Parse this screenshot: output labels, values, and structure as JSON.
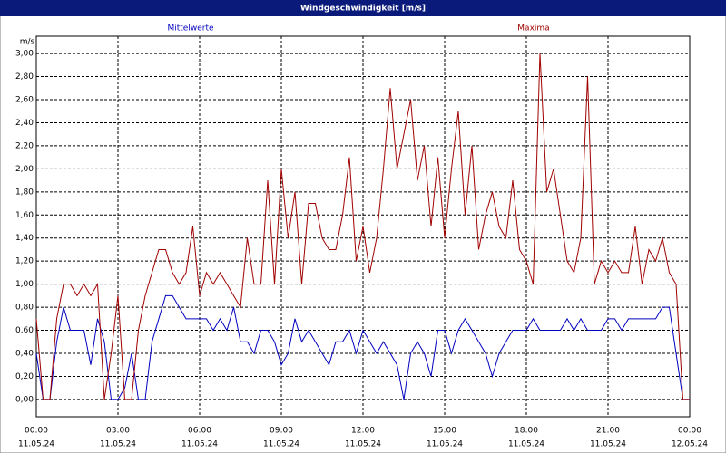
{
  "chart_data": {
    "type": "line",
    "window_title": "Windgeschwindigkeit [m/s]",
    "y_unit": "m/s",
    "grid": true,
    "x": [
      0,
      0.25,
      0.5,
      0.75,
      1,
      1.25,
      1.5,
      1.75,
      2,
      2.25,
      2.5,
      2.75,
      3,
      3.25,
      3.5,
      3.75,
      4,
      4.25,
      4.5,
      4.75,
      5,
      5.25,
      5.5,
      5.75,
      6,
      6.25,
      6.5,
      6.75,
      7,
      7.25,
      7.5,
      7.75,
      8,
      8.25,
      8.5,
      8.75,
      9,
      9.25,
      9.5,
      9.75,
      10,
      10.25,
      10.5,
      10.75,
      11,
      11.25,
      11.5,
      11.75,
      12,
      12.25,
      12.5,
      12.75,
      13,
      13.25,
      13.5,
      13.75,
      14,
      14.25,
      14.5,
      14.75,
      15,
      15.25,
      15.5,
      15.75,
      16,
      16.25,
      16.5,
      16.75,
      17,
      17.25,
      17.5,
      17.75,
      18,
      18.25,
      18.5,
      18.75,
      19,
      19.25,
      19.5,
      19.75,
      20,
      20.25,
      20.5,
      20.75,
      21,
      21.25,
      21.5,
      21.75,
      22,
      22.25,
      22.5,
      22.75,
      23,
      23.25,
      23.5,
      23.75,
      24
    ],
    "series": [
      {
        "name": "Mittelwerte",
        "color": "#0000c0",
        "values": [
          0.4,
          0.0,
          0.0,
          0.5,
          0.8,
          0.6,
          0.6,
          0.6,
          0.3,
          0.7,
          0.5,
          0.0,
          0.0,
          0.1,
          0.4,
          0.0,
          0.0,
          0.5,
          0.7,
          0.9,
          0.9,
          0.8,
          0.7,
          0.7,
          0.7,
          0.7,
          0.6,
          0.7,
          0.6,
          0.8,
          0.5,
          0.5,
          0.4,
          0.6,
          0.6,
          0.5,
          0.3,
          0.4,
          0.7,
          0.5,
          0.6,
          0.5,
          0.4,
          0.3,
          0.5,
          0.5,
          0.6,
          0.4,
          0.6,
          0.5,
          0.4,
          0.5,
          0.4,
          0.3,
          0.0,
          0.4,
          0.5,
          0.4,
          0.2,
          0.6,
          0.6,
          0.4,
          0.6,
          0.7,
          0.6,
          0.5,
          0.4,
          0.2,
          0.4,
          0.5,
          0.6,
          0.6,
          0.6,
          0.7,
          0.6,
          0.6,
          0.6,
          0.6,
          0.7,
          0.6,
          0.7,
          0.6,
          0.6,
          0.6,
          0.7,
          0.7,
          0.6,
          0.7,
          0.7,
          0.7,
          0.7,
          0.7,
          0.8,
          0.8,
          0.4,
          0.0,
          0.0
        ]
      },
      {
        "name": "Maxima",
        "color": "#a00000",
        "values": [
          0.7,
          0.0,
          0.0,
          0.7,
          1.0,
          1.0,
          0.9,
          1.0,
          0.9,
          1.0,
          0.0,
          0.4,
          0.9,
          0.0,
          0.0,
          0.6,
          0.9,
          1.1,
          1.3,
          1.3,
          1.1,
          1.0,
          1.1,
          1.5,
          0.9,
          1.1,
          1.0,
          1.1,
          1.0,
          0.9,
          0.8,
          1.4,
          1.0,
          1.0,
          1.9,
          1.0,
          2.0,
          1.4,
          1.8,
          1.0,
          1.7,
          1.7,
          1.4,
          1.3,
          1.3,
          1.6,
          2.1,
          1.2,
          1.5,
          1.1,
          1.4,
          2.0,
          2.7,
          2.0,
          2.3,
          2.6,
          1.9,
          2.2,
          1.5,
          2.1,
          1.4,
          2.0,
          2.5,
          1.6,
          2.2,
          1.3,
          1.6,
          1.8,
          1.5,
          1.4,
          1.9,
          1.3,
          1.2,
          1.0,
          3.0,
          1.8,
          2.0,
          1.6,
          1.2,
          1.1,
          1.4,
          2.8,
          1.0,
          1.2,
          1.1,
          1.2,
          1.1,
          1.1,
          1.5,
          1.0,
          1.3,
          1.2,
          1.4,
          1.1,
          1.0,
          0.0,
          0.0
        ]
      }
    ],
    "xlim": [
      0,
      24
    ],
    "xticks": [
      {
        "value": 0,
        "label": "00:00",
        "date": "11.05.24"
      },
      {
        "value": 3,
        "label": "03:00",
        "date": "11.05.24"
      },
      {
        "value": 6,
        "label": "06:00",
        "date": "11.05.24"
      },
      {
        "value": 9,
        "label": "09:00",
        "date": "11.05.24"
      },
      {
        "value": 12,
        "label": "12:00",
        "date": "11.05.24"
      },
      {
        "value": 15,
        "label": "15:00",
        "date": "11.05.24"
      },
      {
        "value": 18,
        "label": "18:00",
        "date": "11.05.24"
      },
      {
        "value": 21,
        "label": "21:00",
        "date": "11.05.24"
      },
      {
        "value": 24,
        "label": "00:00",
        "date": "12.05.24"
      }
    ],
    "ylim": [
      -0.15,
      3.15
    ],
    "yticks": [
      {
        "value": 0,
        "label": "0,00"
      },
      {
        "value": 0.2,
        "label": "0,20"
      },
      {
        "value": 0.4,
        "label": "0,40"
      },
      {
        "value": 0.6,
        "label": "0,60"
      },
      {
        "value": 0.8,
        "label": "0,80"
      },
      {
        "value": 1,
        "label": "1,00"
      },
      {
        "value": 1.2,
        "label": "1,20"
      },
      {
        "value": 1.4,
        "label": "1,40"
      },
      {
        "value": 1.6,
        "label": "1,60"
      },
      {
        "value": 1.8,
        "label": "1,80"
      },
      {
        "value": 2,
        "label": "2,00"
      },
      {
        "value": 2.2,
        "label": "2,20"
      },
      {
        "value": 2.4,
        "label": "2,40"
      },
      {
        "value": 2.6,
        "label": "2,60"
      },
      {
        "value": 2.8,
        "label": "2,80"
      },
      {
        "value": 3,
        "label": "3,00"
      }
    ]
  }
}
